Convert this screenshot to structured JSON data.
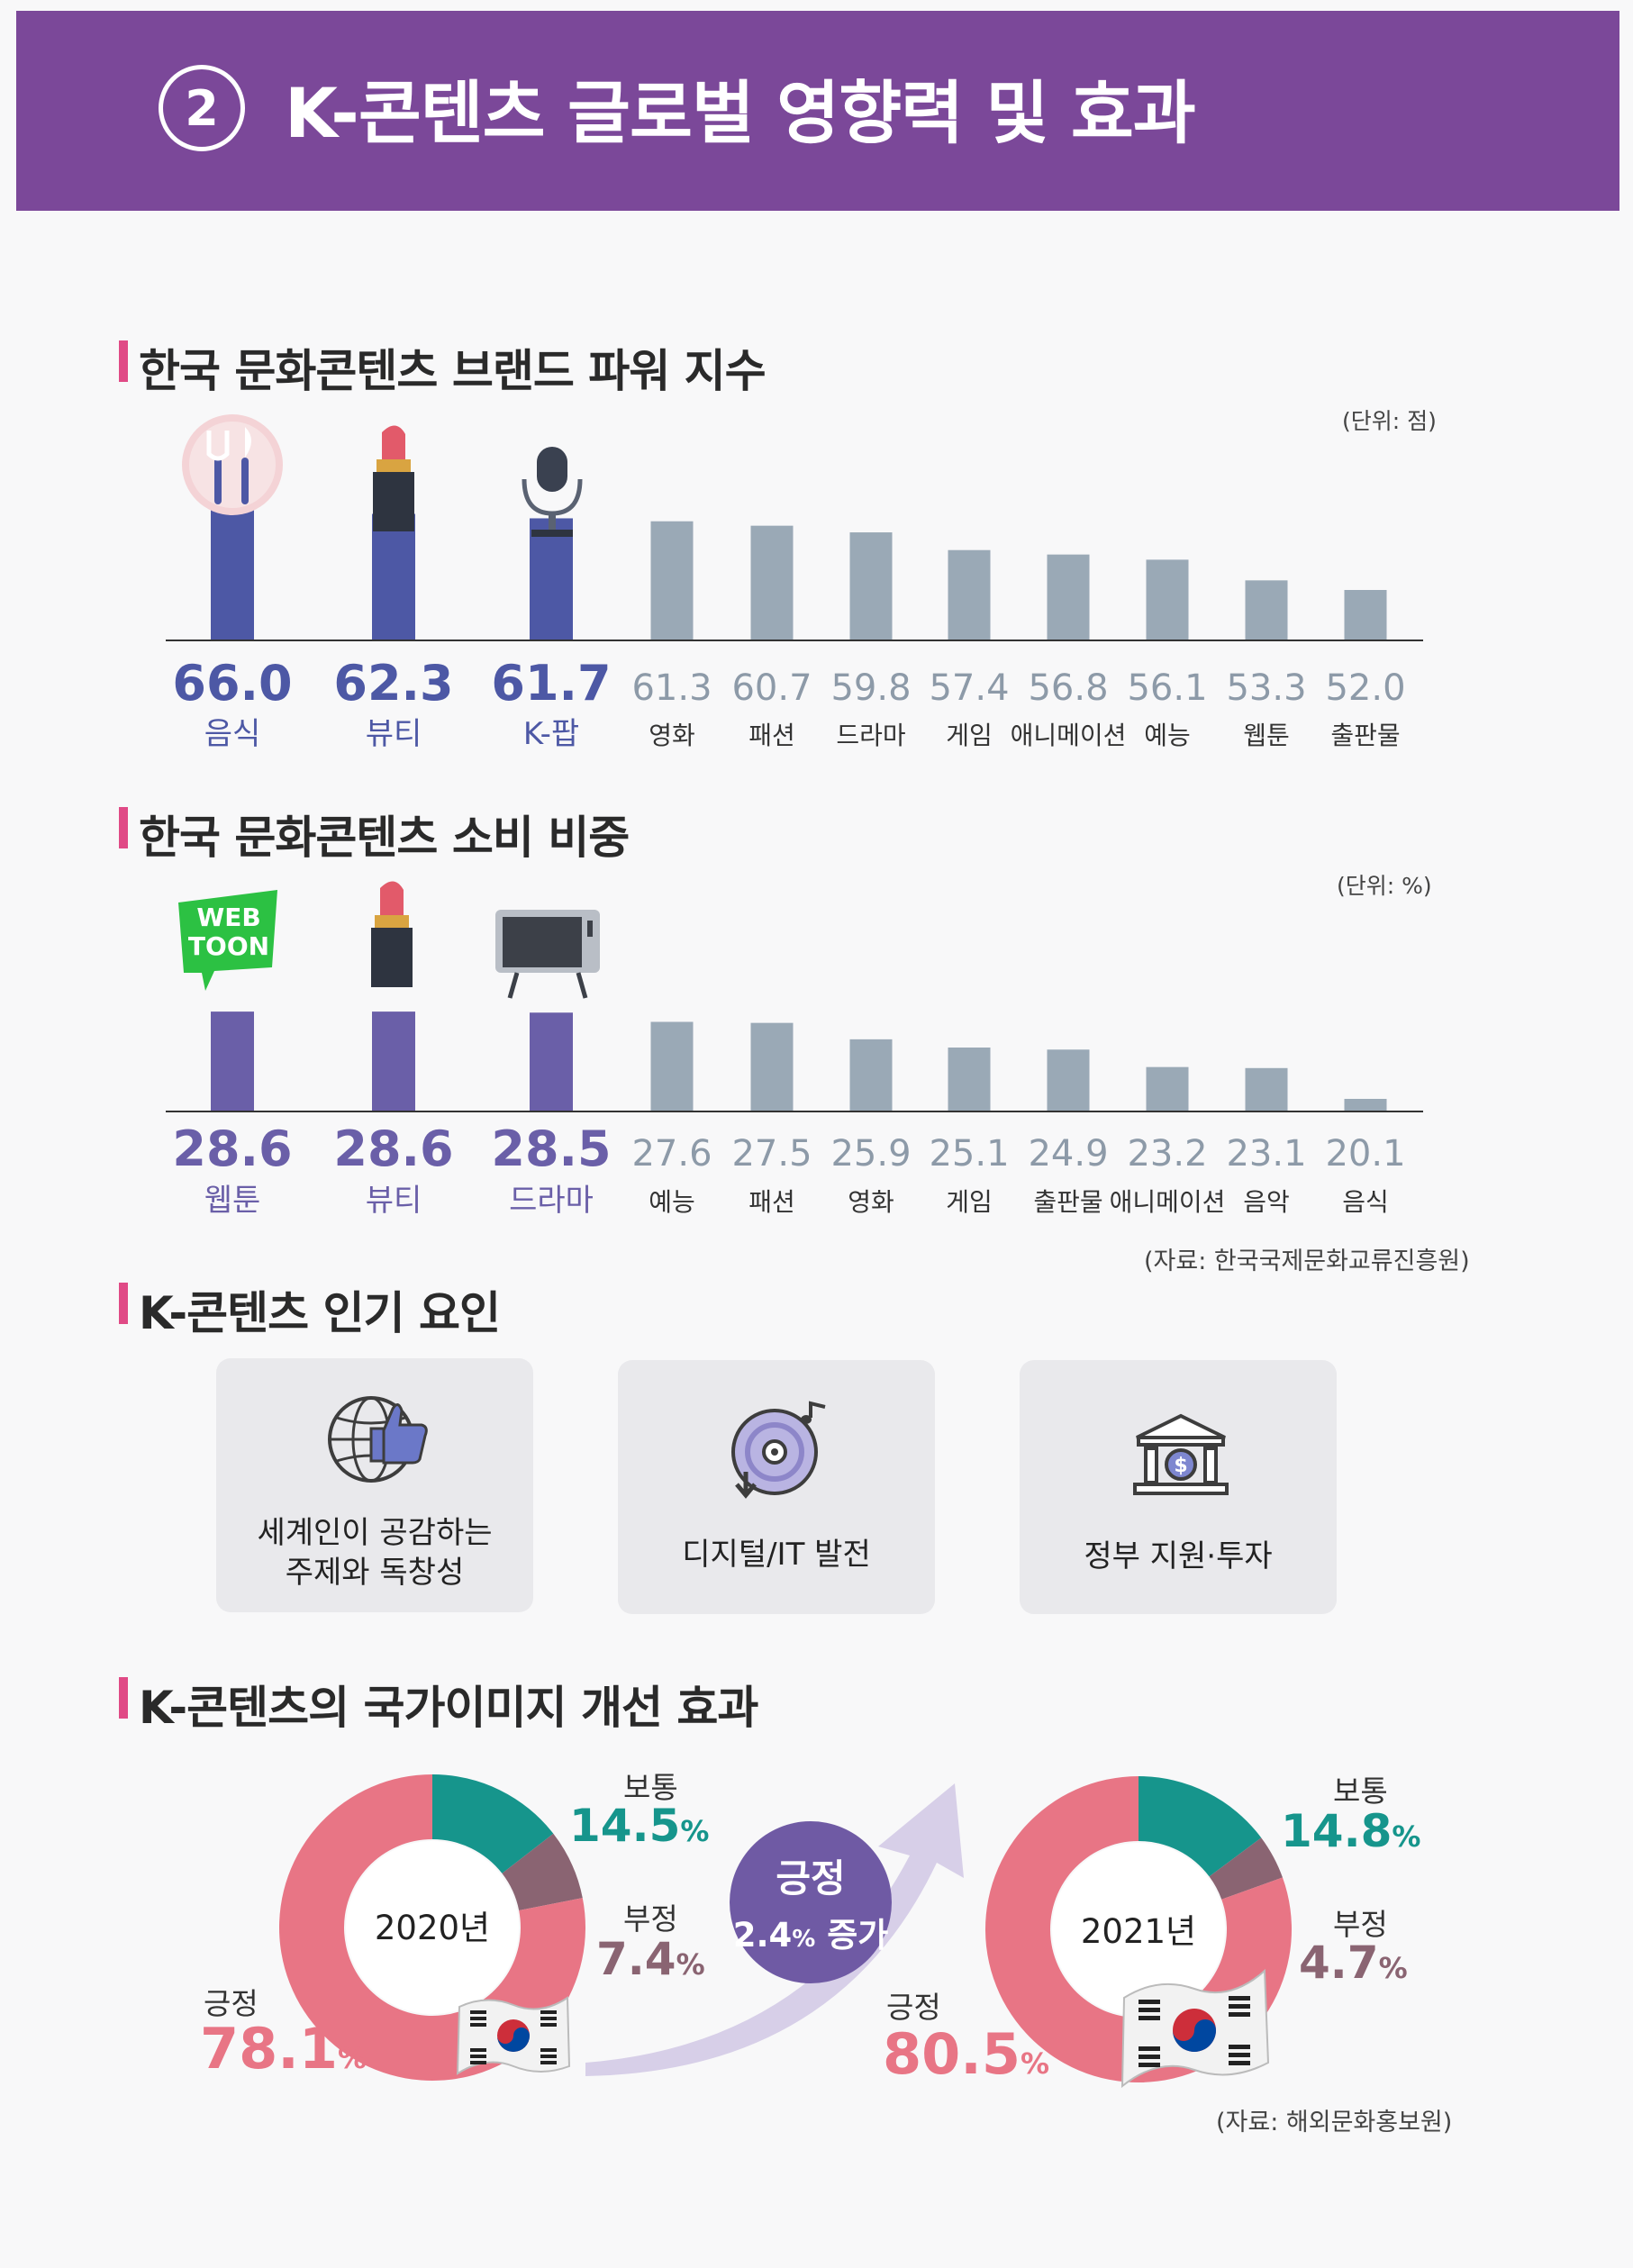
{
  "header": {
    "number": "2",
    "title": "K-콘텐츠 글로벌 영향력 및 효과"
  },
  "colors": {
    "banner": "#7b4899",
    "accent_bar": "#e04a86",
    "top_bar_1": "#4d58a5",
    "top_bar_2": "#6a5fa8",
    "gray_bar": "#9aa9b6",
    "positive": "#e87585",
    "neutral": "#16958c",
    "negative": "#8a6472"
  },
  "chart_data": [
    {
      "type": "bar",
      "title": "한국 문화콘텐츠 브랜드 파워 지수",
      "unit": "(단위: 점)",
      "categories": [
        "음식",
        "뷰티",
        "K-팝",
        "영화",
        "패션",
        "드라마",
        "게임",
        "애니메이션",
        "예능",
        "웹툰",
        "출판물"
      ],
      "values": [
        66.0,
        62.3,
        61.7,
        61.3,
        60.7,
        59.8,
        57.4,
        56.8,
        56.1,
        53.3,
        52.0
      ],
      "value_labels": [
        "66.0",
        "62.3",
        "61.7",
        "61.3",
        "60.7",
        "59.8",
        "57.4",
        "56.8",
        "56.1",
        "53.3",
        "52.0"
      ],
      "highlight_count": 3,
      "icons": [
        "fork-knife-icon",
        "lipstick-icon",
        "microphone-icon"
      ]
    },
    {
      "type": "bar",
      "title": "한국 문화콘텐츠 소비 비중",
      "unit": "(단위: %)",
      "categories": [
        "웹툰",
        "뷰티",
        "드라마",
        "예능",
        "패션",
        "영화",
        "게임",
        "출판물",
        "애니메이션",
        "음악",
        "음식"
      ],
      "values": [
        28.6,
        28.6,
        28.5,
        27.6,
        27.5,
        25.9,
        25.1,
        24.9,
        23.2,
        23.1,
        20.1
      ],
      "value_labels": [
        "28.6",
        "28.6",
        "28.5",
        "27.6",
        "27.5",
        "25.9",
        "25.1",
        "24.9",
        "23.2",
        "23.1",
        "20.1"
      ],
      "highlight_count": 3,
      "icons": [
        "webtoon-icon",
        "lipstick-icon",
        "tv-icon"
      ],
      "source": "(자료: 한국국제문화교류진흥원)"
    },
    {
      "type": "pie",
      "title": "K-콘텐츠의 국가이미지 개선 효과",
      "charts": [
        {
          "center_label": "2020년",
          "slices": [
            {
              "name": "긍정",
              "value": 78.1,
              "label": "78.1"
            },
            {
              "name": "보통",
              "value": 14.5,
              "label": "14.5"
            },
            {
              "name": "부정",
              "value": 7.4,
              "label": "7.4"
            }
          ]
        },
        {
          "center_label": "2021년",
          "slices": [
            {
              "name": "긍정",
              "value": 80.5,
              "label": "80.5"
            },
            {
              "name": "보통",
              "value": 14.8,
              "label": "14.8"
            },
            {
              "name": "부정",
              "value": 4.7,
              "label": "4.7"
            }
          ]
        }
      ],
      "percent_sign": "%",
      "source": "(자료: 해외문화홍보원)"
    }
  ],
  "factors": {
    "title": "K-콘텐츠 인기 요인",
    "items": [
      {
        "label": "세계인이 공감하는\n주제와 독창성",
        "icon": "globe-thumbs-up-icon"
      },
      {
        "label": "디지털/IT 발전",
        "icon": "music-disc-icon"
      },
      {
        "label": "정부 지원·투자",
        "icon": "bank-icon"
      }
    ]
  },
  "badge": {
    "line1": "긍정",
    "value": "2.4",
    "unit": "%",
    "suffix": "증가"
  },
  "webtoon_logo": {
    "line1": "WEB",
    "line2": "TOON"
  }
}
